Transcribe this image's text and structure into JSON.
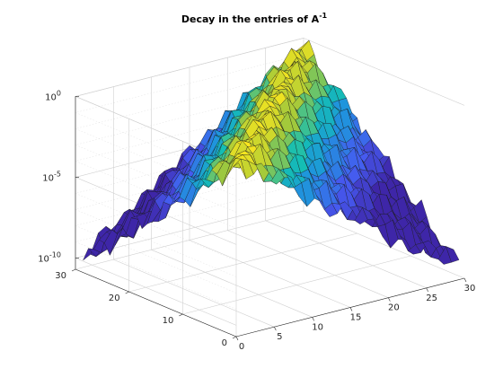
{
  "chart_data": {
    "type": "surface",
    "title_main": "Decay in the entries of A",
    "title_sup": "-1",
    "xlabel": "",
    "ylabel": "",
    "zlabel": "",
    "xlim": [
      0,
      30
    ],
    "ylim": [
      0,
      30
    ],
    "zlim_log10": [
      -10.7,
      0
    ],
    "zscale": "log",
    "grid": true,
    "colormap": "parula",
    "matrix_size": 30,
    "peak_value_log10": -0.2,
    "decay_log10_per_index": -0.34,
    "x_ticks": [
      {
        "value": 0,
        "label": "0"
      },
      {
        "value": 5,
        "label": "5"
      },
      {
        "value": 10,
        "label": "10"
      },
      {
        "value": 15,
        "label": "15"
      },
      {
        "value": 20,
        "label": "20"
      },
      {
        "value": 25,
        "label": "25"
      },
      {
        "value": 30,
        "label": "30"
      }
    ],
    "y_ticks": [
      {
        "value": 0,
        "label": "0"
      },
      {
        "value": 10,
        "label": "10"
      },
      {
        "value": 20,
        "label": "20"
      },
      {
        "value": 30,
        "label": "30"
      }
    ],
    "z_ticks": [
      {
        "value": 0,
        "base": "10",
        "exp": "0"
      },
      {
        "value": -5,
        "base": "10",
        "exp": "-5"
      },
      {
        "value": -10,
        "base": "10",
        "exp": "-10"
      }
    ]
  }
}
